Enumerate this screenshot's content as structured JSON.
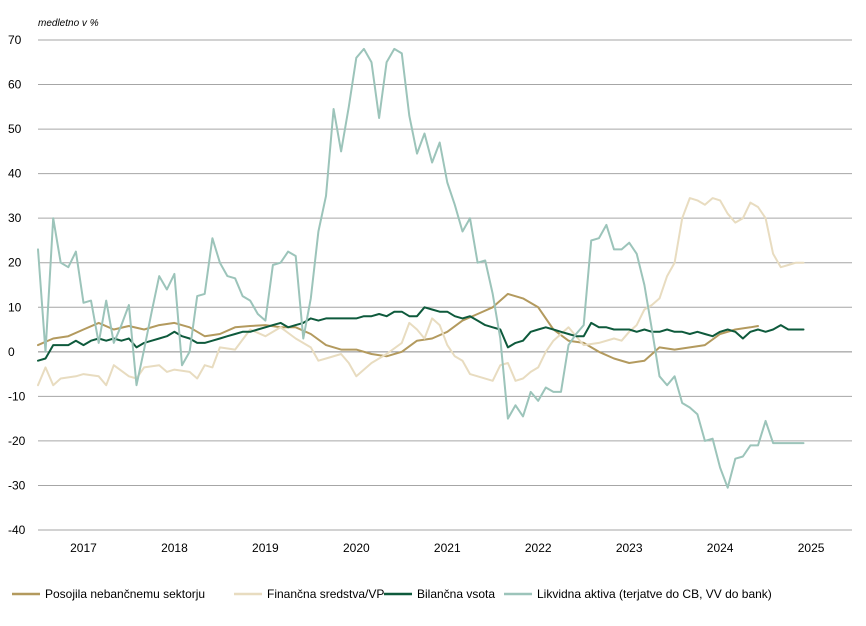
{
  "chart_data": {
    "type": "line",
    "ylabel": "medletno v %",
    "ylim": [
      -40,
      70
    ],
    "yticks": [
      70,
      60,
      50,
      40,
      30,
      20,
      10,
      0,
      -10,
      -20,
      -30,
      -40
    ],
    "xlim": [
      2016.5,
      2025.45
    ],
    "xticks": [
      {
        "label": "2017",
        "value": 2017.0
      },
      {
        "label": "2018",
        "value": 2018.0
      },
      {
        "label": "2019",
        "value": 2019.0
      },
      {
        "label": "2020",
        "value": 2020.0
      },
      {
        "label": "2021",
        "value": 2021.0
      },
      {
        "label": "2022",
        "value": 2022.0
      },
      {
        "label": "2023",
        "value": 2023.0
      },
      {
        "label": "2024",
        "value": 2024.0
      },
      {
        "label": "2025",
        "value": 2025.0
      }
    ],
    "grid": true,
    "legend_placement": "bottom",
    "series": [
      {
        "name": "Posojila nebančnemu sektorju",
        "color": "#b39a5e",
        "x": [
          2016.5,
          2016.667,
          2016.833,
          2017.0,
          2017.167,
          2017.333,
          2017.5,
          2017.667,
          2017.833,
          2018.0,
          2018.167,
          2018.333,
          2018.5,
          2018.667,
          2018.833,
          2019.0,
          2019.167,
          2019.333,
          2019.5,
          2019.667,
          2019.833,
          2020.0,
          2020.167,
          2020.333,
          2020.5,
          2020.667,
          2020.833,
          2021.0,
          2021.167,
          2021.333,
          2021.5,
          2021.667,
          2021.833,
          2022.0,
          2022.167,
          2022.333,
          2022.5,
          2022.667,
          2022.833,
          2023.0,
          2023.167,
          2023.333,
          2023.5,
          2023.667,
          2023.833,
          2024.0,
          2024.167,
          2024.333,
          2024.417
        ],
        "y": [
          1.5,
          3.0,
          3.5,
          5.0,
          6.5,
          5.0,
          5.8,
          5.0,
          6.0,
          6.5,
          5.5,
          3.5,
          4.0,
          5.5,
          5.8,
          6.0,
          5.5,
          5.5,
          4.0,
          1.5,
          0.5,
          0.5,
          -0.5,
          -1.0,
          0.0,
          2.5,
          3.0,
          4.5,
          7.0,
          8.5,
          10.0,
          13.0,
          12.0,
          10.0,
          5.0,
          2.5,
          2.0,
          0.0,
          -1.5,
          -2.5,
          -2.0,
          1.0,
          0.5,
          1.0,
          1.5,
          4.0,
          5.0,
          5.5,
          5.8
        ]
      },
      {
        "name": "Finančna sredstva/VP",
        "color": "#e8dcc0",
        "x": [
          2016.5,
          2016.583,
          2016.667,
          2016.75,
          2016.917,
          2017.0,
          2017.167,
          2017.25,
          2017.333,
          2017.5,
          2017.583,
          2017.667,
          2017.833,
          2017.917,
          2018.0,
          2018.167,
          2018.25,
          2018.333,
          2018.417,
          2018.5,
          2018.667,
          2018.833,
          2019.0,
          2019.167,
          2019.333,
          2019.5,
          2019.583,
          2019.667,
          2019.833,
          2019.917,
          2020.0,
          2020.167,
          2020.333,
          2020.5,
          2020.583,
          2020.667,
          2020.75,
          2020.833,
          2020.917,
          2021.0,
          2021.083,
          2021.167,
          2021.25,
          2021.333,
          2021.5,
          2021.583,
          2021.667,
          2021.75,
          2021.833,
          2021.917,
          2022.0,
          2022.083,
          2022.167,
          2022.333,
          2022.5,
          2022.667,
          2022.833,
          2022.917,
          2023.0,
          2023.083,
          2023.167,
          2023.25,
          2023.333,
          2023.417,
          2023.5,
          2023.583,
          2023.667,
          2023.75,
          2023.833,
          2023.917,
          2024.0,
          2024.083,
          2024.167,
          2024.25,
          2024.333,
          2024.417,
          2024.5,
          2024.583,
          2024.667,
          2024.75,
          2024.833,
          2024.917
        ],
        "y": [
          -7.5,
          -3.5,
          -7.5,
          -6.0,
          -5.5,
          -5.0,
          -5.5,
          -7.5,
          -3.0,
          -5.5,
          -6.0,
          -3.5,
          -3.0,
          -4.5,
          -4.0,
          -4.5,
          -6.0,
          -3.0,
          -3.5,
          1.0,
          0.5,
          5.0,
          3.5,
          5.5,
          3.0,
          1.0,
          -2.0,
          -1.5,
          -0.5,
          -2.5,
          -5.5,
          -2.5,
          -0.5,
          2.0,
          6.5,
          5.0,
          3.0,
          7.5,
          6.0,
          1.5,
          -1.0,
          -2.0,
          -5.0,
          -5.5,
          -6.5,
          -3.0,
          -2.5,
          -6.5,
          -6.0,
          -4.5,
          -3.5,
          0.0,
          2.5,
          5.5,
          1.5,
          2.0,
          3.0,
          2.5,
          4.5,
          6.0,
          9.5,
          10.5,
          12.0,
          17.0,
          20.0,
          30.0,
          34.5,
          34.0,
          33.0,
          34.5,
          34.0,
          31.0,
          29.0,
          30.0,
          33.5,
          32.5,
          30.0,
          22.0,
          19.0,
          19.5,
          20.0,
          20.0
        ]
      },
      {
        "name": "Bilančna vsota",
        "color": "#0e5a3c",
        "x": [
          2016.5,
          2016.583,
          2016.667,
          2016.833,
          2016.917,
          2017.0,
          2017.083,
          2017.167,
          2017.25,
          2017.333,
          2017.417,
          2017.5,
          2017.583,
          2017.667,
          2017.75,
          2017.833,
          2017.917,
          2018.0,
          2018.083,
          2018.167,
          2018.25,
          2018.333,
          2018.417,
          2018.5,
          2018.583,
          2018.667,
          2018.75,
          2018.833,
          2018.917,
          2019.0,
          2019.083,
          2019.167,
          2019.25,
          2019.333,
          2019.417,
          2019.5,
          2019.583,
          2019.667,
          2019.75,
          2019.833,
          2019.917,
          2020.0,
          2020.083,
          2020.167,
          2020.25,
          2020.333,
          2020.417,
          2020.5,
          2020.583,
          2020.667,
          2020.75,
          2020.833,
          2020.917,
          2021.0,
          2021.083,
          2021.167,
          2021.25,
          2021.333,
          2021.417,
          2021.5,
          2021.583,
          2021.667,
          2021.75,
          2021.833,
          2021.917,
          2022.0,
          2022.083,
          2022.167,
          2022.25,
          2022.333,
          2022.417,
          2022.5,
          2022.583,
          2022.667,
          2022.75,
          2022.833,
          2022.917,
          2023.0,
          2023.083,
          2023.167,
          2023.25,
          2023.333,
          2023.417,
          2023.5,
          2023.583,
          2023.667,
          2023.75,
          2023.833,
          2023.917,
          2024.0,
          2024.083,
          2024.167,
          2024.25,
          2024.333,
          2024.417,
          2024.5,
          2024.583,
          2024.667,
          2024.75,
          2024.833,
          2024.917
        ],
        "y": [
          -2.0,
          -1.5,
          1.5,
          1.5,
          2.5,
          1.5,
          2.5,
          3.0,
          2.5,
          3.0,
          2.5,
          3.0,
          1.0,
          2.0,
          2.5,
          3.0,
          3.5,
          4.5,
          3.5,
          3.0,
          2.0,
          2.0,
          2.5,
          3.0,
          3.5,
          4.0,
          4.5,
          4.5,
          5.0,
          5.5,
          6.0,
          6.5,
          5.5,
          6.0,
          6.5,
          7.5,
          7.0,
          7.5,
          7.5,
          7.5,
          7.5,
          7.5,
          8.0,
          8.0,
          8.5,
          8.0,
          9.0,
          9.0,
          8.0,
          8.0,
          10.0,
          9.5,
          9.0,
          9.0,
          8.0,
          7.5,
          8.0,
          7.0,
          6.0,
          5.5,
          5.0,
          1.0,
          2.0,
          2.5,
          4.5,
          5.0,
          5.5,
          5.0,
          4.5,
          4.0,
          3.5,
          3.5,
          6.5,
          5.5,
          5.5,
          5.0,
          5.0,
          5.0,
          4.5,
          5.0,
          4.5,
          4.5,
          5.0,
          4.5,
          4.5,
          4.0,
          4.5,
          4.0,
          3.5,
          4.5,
          5.0,
          4.5,
          3.0,
          4.5,
          5.0,
          4.5,
          5.0,
          6.0,
          5.0,
          5.0,
          5.0
        ]
      },
      {
        "name": "Likvidna aktiva (terjatve do CB, VV do bank)",
        "color": "#9cc4ba",
        "x": [
          2016.5,
          2016.583,
          2016.667,
          2016.75,
          2016.833,
          2016.917,
          2017.0,
          2017.083,
          2017.167,
          2017.25,
          2017.333,
          2017.417,
          2017.5,
          2017.583,
          2017.667,
          2017.75,
          2017.833,
          2017.917,
          2018.0,
          2018.083,
          2018.167,
          2018.25,
          2018.333,
          2018.417,
          2018.5,
          2018.583,
          2018.667,
          2018.75,
          2018.833,
          2018.917,
          2019.0,
          2019.083,
          2019.167,
          2019.25,
          2019.333,
          2019.417,
          2019.5,
          2019.583,
          2019.667,
          2019.75,
          2019.833,
          2019.917,
          2020.0,
          2020.083,
          2020.167,
          2020.25,
          2020.333,
          2020.417,
          2020.5,
          2020.583,
          2020.667,
          2020.75,
          2020.833,
          2020.917,
          2021.0,
          2021.083,
          2021.167,
          2021.25,
          2021.333,
          2021.417,
          2021.5,
          2021.583,
          2021.667,
          2021.75,
          2021.833,
          2021.917,
          2022.0,
          2022.083,
          2022.167,
          2022.25,
          2022.333,
          2022.417,
          2022.5,
          2022.583,
          2022.667,
          2022.75,
          2022.833,
          2022.917,
          2023.0,
          2023.083,
          2023.167,
          2023.25,
          2023.333,
          2023.417,
          2023.5,
          2023.583,
          2023.667,
          2023.75,
          2023.833,
          2023.917,
          2024.0,
          2024.083,
          2024.167,
          2024.25,
          2024.333,
          2024.417,
          2024.5,
          2024.583,
          2024.667,
          2024.75,
          2024.833,
          2024.917
        ],
        "y": [
          23.0,
          0.0,
          30.0,
          20.0,
          19.0,
          22.5,
          11.0,
          11.5,
          2.0,
          11.5,
          2.0,
          6.0,
          10.5,
          -7.5,
          0.5,
          9.0,
          17.0,
          14.0,
          17.5,
          -3.0,
          0.0,
          12.5,
          13.0,
          25.5,
          20.0,
          17.0,
          16.5,
          12.5,
          11.5,
          8.5,
          7.0,
          19.5,
          20.0,
          22.5,
          21.5,
          3.0,
          12.0,
          27.0,
          35.0,
          54.5,
          45.0,
          55.0,
          66.0,
          68.0,
          65.0,
          52.5,
          65.0,
          68.0,
          67.0,
          53.0,
          44.5,
          49.0,
          42.5,
          47.0,
          38.0,
          33.0,
          27.0,
          30.0,
          20.0,
          20.5,
          13.0,
          3.0,
          -15.0,
          -12.0,
          -14.5,
          -9.0,
          -11.0,
          -8.0,
          -9.0,
          -9.0,
          1.5,
          4.0,
          6.0,
          25.0,
          25.5,
          28.5,
          23.0,
          23.0,
          24.5,
          22.0,
          15.0,
          5.0,
          -5.5,
          -7.5,
          -5.5,
          -11.5,
          -12.5,
          -14.0,
          -20.0,
          -19.5,
          -26.0,
          -30.5,
          -24.0,
          -23.5,
          -21.0,
          -21.0,
          -15.5,
          -20.5,
          -20.5,
          -20.5,
          -20.5,
          -20.5
        ]
      }
    ]
  }
}
